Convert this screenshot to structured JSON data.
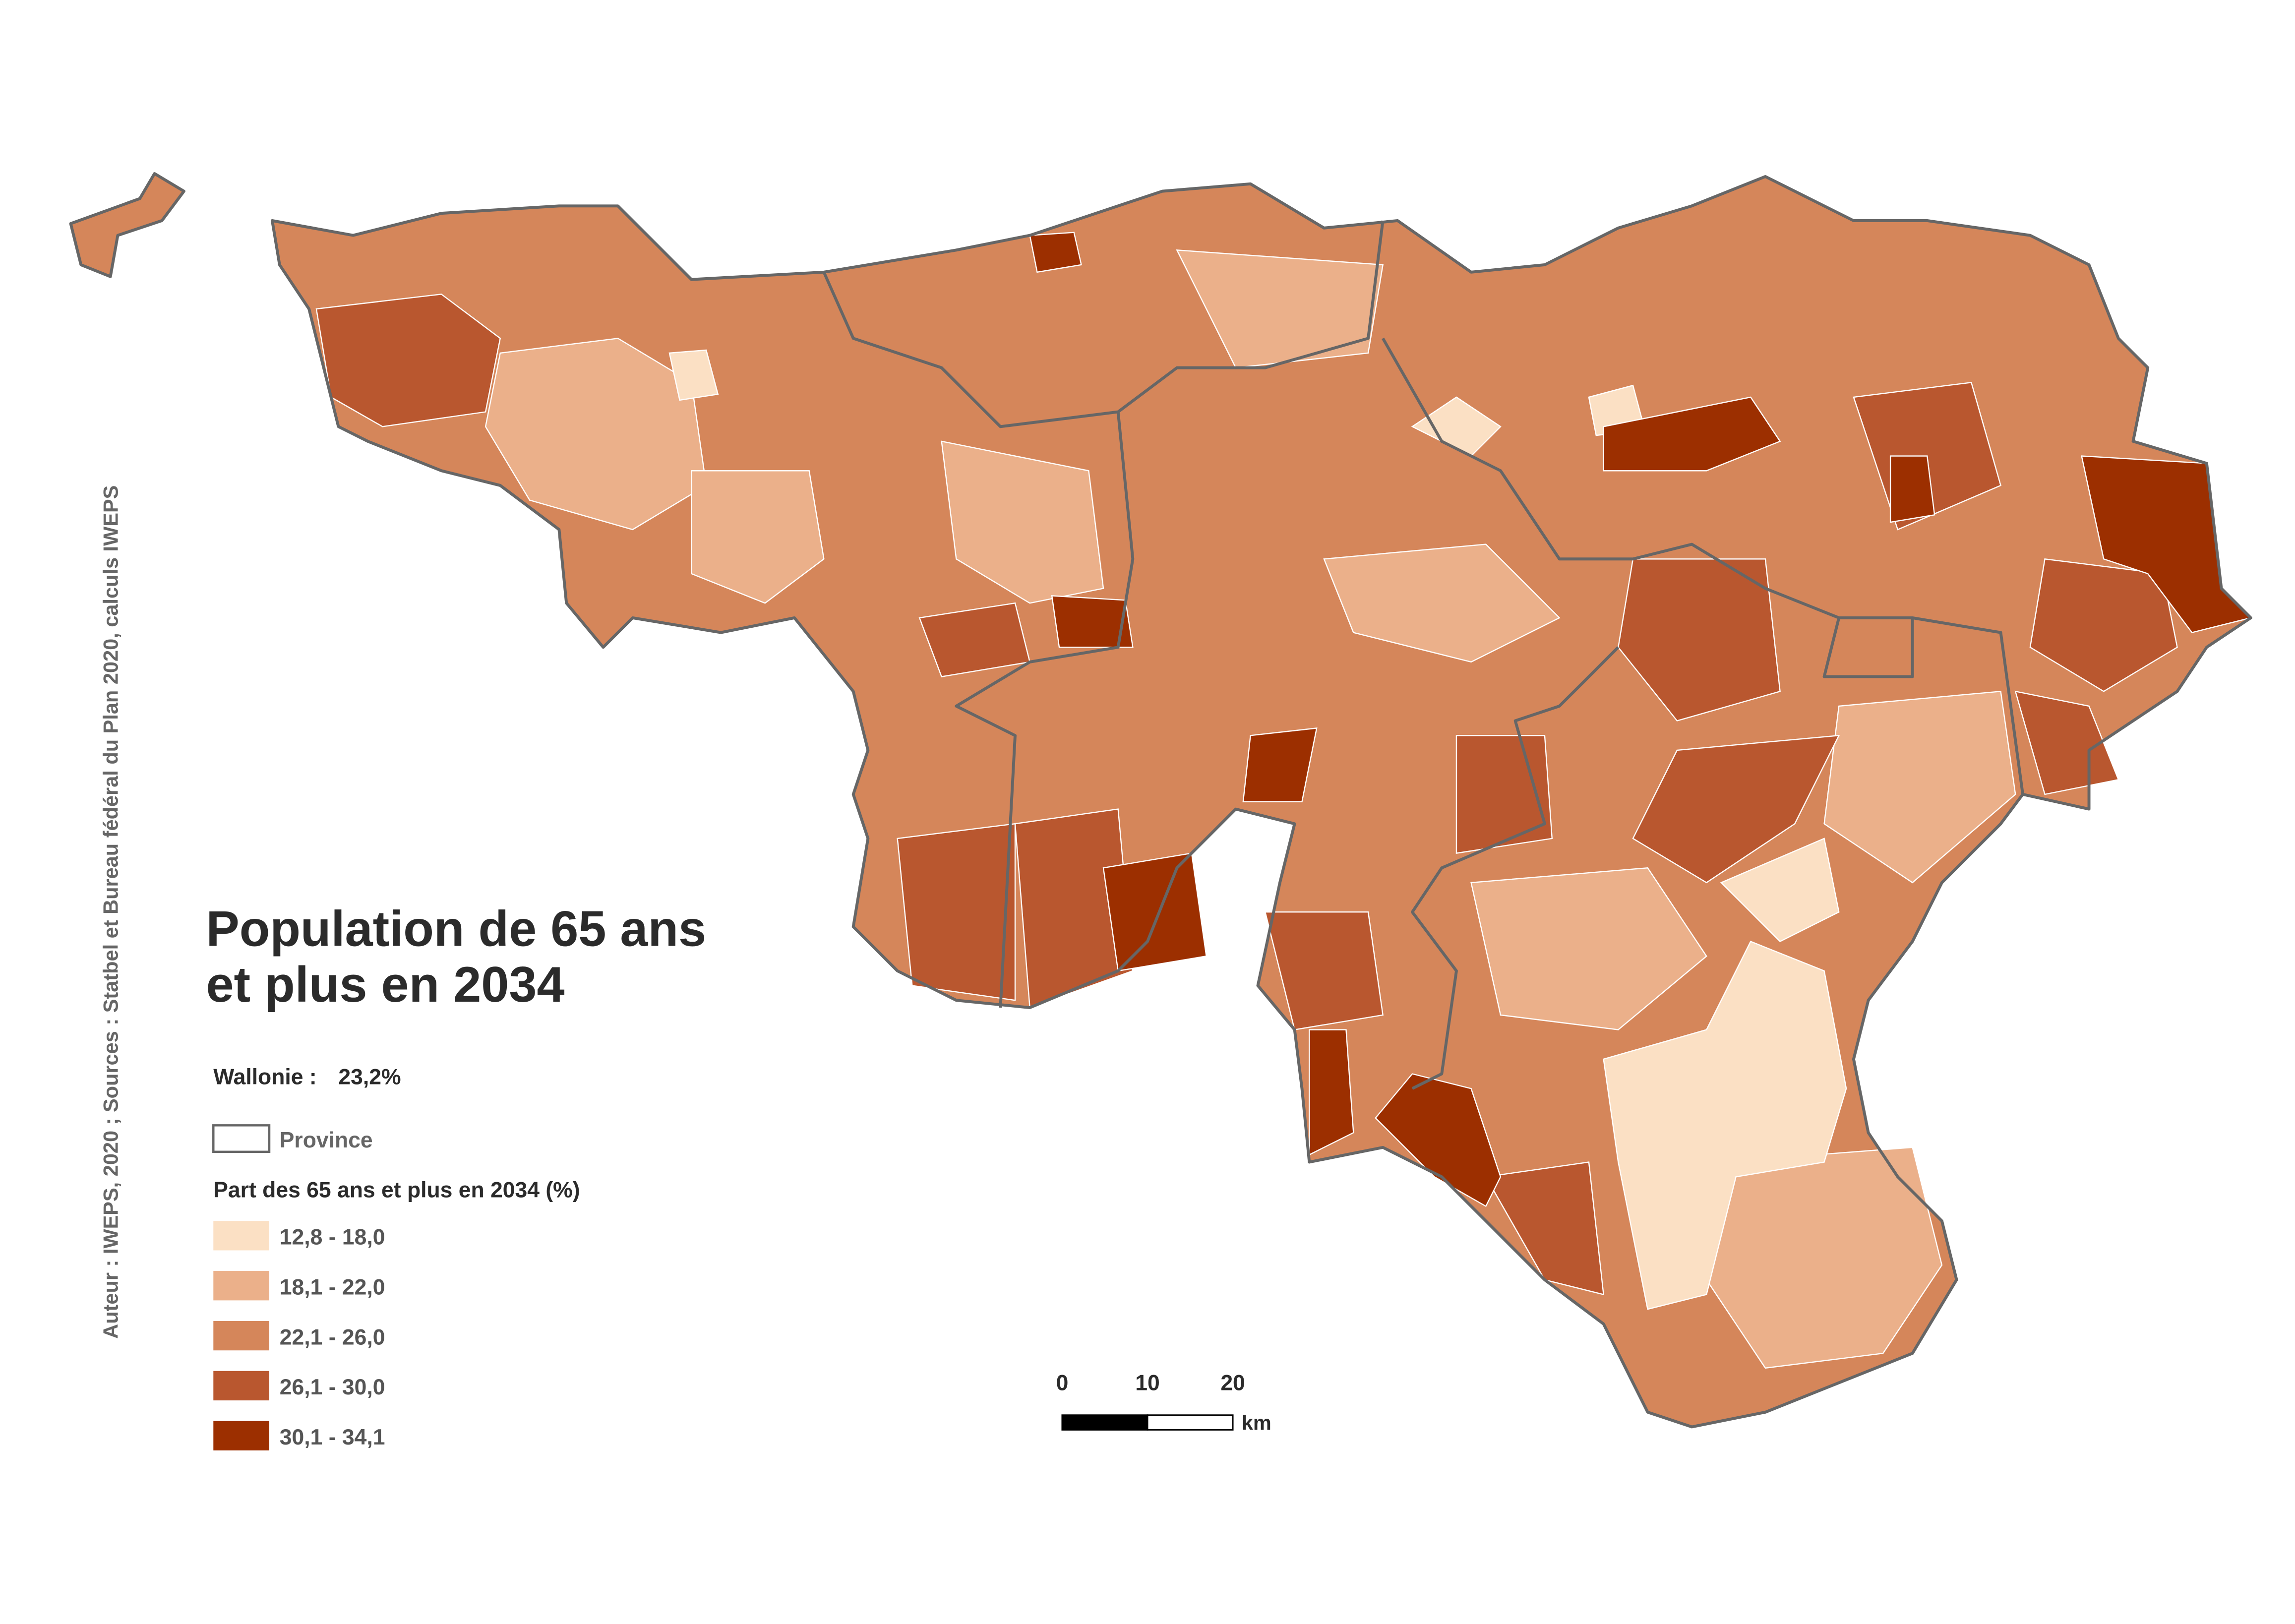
{
  "title_lines": [
    "Population de 65 ans",
    "et plus en 2034"
  ],
  "region_summary": {
    "label": "Wallonie :",
    "value": "23,2%"
  },
  "province_legend": "Province",
  "legend": {
    "title": "Part des 65 ans et plus en 2034 (%)",
    "classes": [
      {
        "label": "12,8 - 18,0",
        "color": "#fbe0c4"
      },
      {
        "label": "18,1 - 22,0",
        "color": "#ebb08a"
      },
      {
        "label": "22,1 - 26,0",
        "color": "#d5865a"
      },
      {
        "label": "26,1 - 30,0",
        "color": "#b9572f"
      },
      {
        "label": "30,1 - 34,1",
        "color": "#9c2f00"
      }
    ]
  },
  "scale_bar": {
    "ticks": [
      "0",
      "10",
      "20"
    ],
    "unit": "km"
  },
  "source": "Auteur : IWEPS, 2020 ; Sources : Statbel et Bureau fédéral du Plan 2020, calculs IWEPS"
}
